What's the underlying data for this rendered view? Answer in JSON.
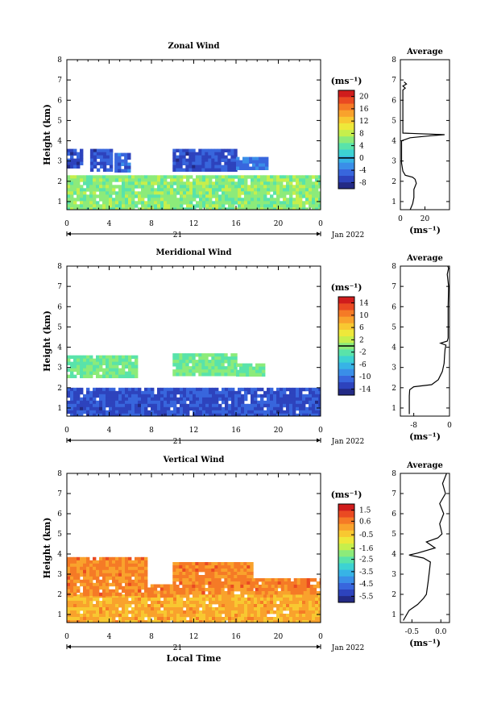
{
  "chart_data": [
    {
      "type": "heatmap",
      "title": "Zonal Wind",
      "xlabel": "",
      "ylabel": "Height (km)",
      "xticks": [
        "0",
        "4",
        "8",
        "12",
        "16",
        "20",
        "0"
      ],
      "yticks": [
        "1",
        "2",
        "3",
        "4",
        "5",
        "6",
        "7",
        "8"
      ],
      "xlim": [
        0,
        24
      ],
      "ylim": [
        0.6,
        8
      ],
      "date_day": "21",
      "date_label": "Jan 2022",
      "colorbar": {
        "unit": "(ms⁻¹)",
        "min": -10,
        "max": 22,
        "ticks": [
          "20",
          "16",
          "12",
          "8",
          "4",
          "0",
          "-4",
          "-8"
        ],
        "zero_line": 0
      },
      "regions": [
        {
          "t": [
            0,
            24.2
          ],
          "h": [
            0.7,
            2.3
          ],
          "value": 6
        },
        {
          "t": [
            0,
            1.5
          ],
          "h": [
            2.75,
            3.6
          ],
          "value": -6
        },
        {
          "t": [
            2.2,
            4.2
          ],
          "h": [
            2.5,
            3.6
          ],
          "value": -6
        },
        {
          "t": [
            4.5,
            6.0
          ],
          "h": [
            2.6,
            3.4
          ],
          "value": -5
        },
        {
          "t": [
            10.0,
            16.0
          ],
          "h": [
            2.55,
            3.6
          ],
          "value": -6
        },
        {
          "t": [
            16.0,
            19.0
          ],
          "h": [
            2.6,
            3.2
          ],
          "value": -4
        }
      ],
      "profile": {
        "title": "Average",
        "xlabel": "(ms⁻¹)",
        "xticks": [
          "0",
          "20"
        ],
        "xlim": [
          0,
          40
        ],
        "h": [
          0.6,
          0.9,
          1.2,
          1.6,
          1.9,
          2.1,
          2.2,
          2.3,
          2.5,
          2.9,
          3.3,
          3.7,
          4.0,
          4.15,
          4.25,
          4.3,
          4.38,
          6.5,
          6.6,
          6.7,
          6.8,
          6.9
        ],
        "v": [
          8,
          10,
          11,
          11,
          13,
          12,
          10,
          4,
          2,
          1,
          1,
          1,
          1,
          8,
          25,
          36,
          2,
          2,
          4,
          2,
          5,
          3
        ]
      }
    },
    {
      "type": "heatmap",
      "title": "Meridional Wind",
      "xlabel": "",
      "ylabel": "Height (km)",
      "xticks": [
        "0",
        "4",
        "8",
        "12",
        "16",
        "20",
        "0"
      ],
      "yticks": [
        "1",
        "2",
        "3",
        "4",
        "5",
        "6",
        "7",
        "8"
      ],
      "xlim": [
        0,
        24
      ],
      "ylim": [
        0.6,
        8
      ],
      "date_day": "21",
      "date_label": "Jan 2022",
      "colorbar": {
        "unit": "(ms⁻¹)",
        "min": -16,
        "max": 16,
        "ticks": [
          "14",
          "10",
          "6",
          "2",
          "-2",
          "-6",
          "-10",
          "-14"
        ],
        "zero_line": 0
      },
      "regions": [
        {
          "t": [
            0,
            24.2
          ],
          "h": [
            0.6,
            2.0
          ],
          "value": -12
        },
        {
          "t": [
            0,
            6.7
          ],
          "h": [
            2.5,
            3.6
          ],
          "value": -1
        },
        {
          "t": [
            10.0,
            16.0
          ],
          "h": [
            2.6,
            3.7
          ],
          "value": -1
        },
        {
          "t": [
            16.0,
            18.5
          ],
          "h": [
            2.7,
            3.2
          ],
          "value": -1
        }
      ],
      "profile": {
        "title": "Average",
        "xlabel": "(ms⁻¹)",
        "xticks": [
          "-8",
          "0"
        ],
        "xlim": [
          -11,
          0
        ],
        "h": [
          0.7,
          1.2,
          1.6,
          1.9,
          2.05,
          2.15,
          2.4,
          2.8,
          3.2,
          3.6,
          3.9,
          4.1,
          4.2,
          4.3,
          4.45,
          5.0,
          6.0,
          7.0,
          7.6,
          7.9,
          8.0
        ],
        "v": [
          -9,
          -9,
          -9,
          -8.9,
          -8,
          -4,
          -2.5,
          -1.6,
          -1.2,
          -1.1,
          -1,
          -0.8,
          -2,
          -0.5,
          -0.3,
          -0.3,
          -0.3,
          -0.2,
          -0.5,
          -0.2,
          -0.4
        ]
      }
    },
    {
      "type": "heatmap",
      "title": "Vertical Wind",
      "xlabel": "Local Time",
      "ylabel": "Height (km)",
      "xticks": [
        "0",
        "4",
        "8",
        "12",
        "16",
        "20",
        "0"
      ],
      "yticks": [
        "1",
        "2",
        "3",
        "4",
        "5",
        "6",
        "7",
        "8"
      ],
      "xlim": [
        0,
        24
      ],
      "ylim": [
        0.6,
        8
      ],
      "date_day": "21",
      "date_label": "Jan 2022",
      "colorbar": {
        "unit": "(ms⁻¹)",
        "min": -6.0,
        "max": 2.0,
        "ticks": [
          "1.5",
          "0.6",
          "-0.5",
          "-1.6",
          "-2.5",
          "-3.5",
          "-4.5",
          "-5.5"
        ],
        "zero_line": null
      },
      "regions": [
        {
          "t": [
            0,
            24.2
          ],
          "h": [
            0.6,
            2.0
          ],
          "value": 0.0
        },
        {
          "t": [
            0,
            7.6
          ],
          "h": [
            2.0,
            3.85
          ],
          "value": 0.5
        },
        {
          "t": [
            10.0,
            17.5
          ],
          "h": [
            2.0,
            3.6
          ],
          "value": 0.5
        },
        {
          "t": [
            7.6,
            10.0
          ],
          "h": [
            2.0,
            2.5
          ],
          "value": 0.5
        },
        {
          "t": [
            17.5,
            24.2
          ],
          "h": [
            2.0,
            2.8
          ],
          "value": 0.5
        }
      ],
      "profile": {
        "title": "Average",
        "xlabel": "(ms⁻¹)",
        "xticks": [
          "-0.5",
          "0.0"
        ],
        "xlim": [
          -0.7,
          0.15
        ],
        "h": [
          0.7,
          1.2,
          1.5,
          1.8,
          2.0,
          2.6,
          3.1,
          3.6,
          3.8,
          3.95,
          4.05,
          4.3,
          4.6,
          4.8,
          5.0,
          5.5,
          6.0,
          6.5,
          7.0,
          7.5,
          8.0
        ],
        "v": [
          -0.65,
          -0.55,
          -0.4,
          -0.3,
          -0.25,
          -0.22,
          -0.2,
          -0.18,
          -0.3,
          -0.55,
          -0.4,
          -0.1,
          -0.25,
          -0.05,
          0.02,
          -0.02,
          0.05,
          -0.02,
          0.08,
          0.03,
          0.1
        ]
      }
    }
  ]
}
